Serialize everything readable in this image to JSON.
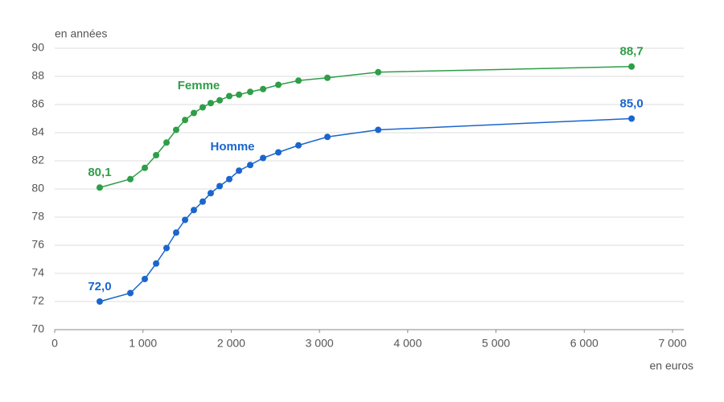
{
  "chart_data": {
    "type": "line",
    "y_label": "en années",
    "x_label": "en euros",
    "xlim": [
      0,
      7000
    ],
    "xticks": [
      0,
      {
        "value": 1000,
        "label": "1 000"
      },
      {
        "value": 2000,
        "label": "2 000"
      },
      {
        "value": 3000,
        "label": "3 000"
      },
      {
        "value": 4000,
        "label": "4 000"
      },
      {
        "value": 5000,
        "label": "5 000"
      },
      {
        "value": 6000,
        "label": "6 000"
      },
      {
        "value": 7000,
        "label": "7 000"
      }
    ],
    "ylim": [
      70,
      90
    ],
    "yticks": [
      70,
      72,
      74,
      76,
      78,
      80,
      82,
      84,
      86,
      88,
      90
    ],
    "grid": true,
    "x": [
      510,
      857,
      1021,
      1149,
      1267,
      1376,
      1477,
      1577,
      1677,
      1768,
      1869,
      1978,
      2088,
      2215,
      2361,
      2534,
      2762,
      3090,
      3665,
      6536
    ],
    "series": [
      {
        "name": "Femme",
        "color": "#2e9e48",
        "values": [
          80.1,
          80.7,
          81.5,
          82.4,
          83.3,
          84.2,
          84.9,
          85.4,
          85.8,
          86.1,
          86.3,
          86.6,
          86.7,
          86.9,
          87.1,
          87.4,
          87.7,
          87.9,
          88.3,
          88.7
        ],
        "value_labels": [
          "80,1",
          null,
          null,
          null,
          null,
          null,
          null,
          null,
          null,
          null,
          null,
          null,
          null,
          null,
          null,
          null,
          null,
          null,
          null,
          "88,7"
        ]
      },
      {
        "name": "Homme",
        "color": "#1a66cc",
        "values": [
          72.0,
          72.6,
          73.6,
          74.7,
          75.8,
          76.9,
          77.8,
          78.5,
          79.1,
          79.7,
          80.2,
          80.7,
          81.3,
          81.7,
          82.2,
          82.6,
          83.1,
          83.7,
          84.2,
          85.0
        ],
        "value_labels": [
          "72,0",
          null,
          null,
          null,
          null,
          null,
          null,
          null,
          null,
          null,
          null,
          null,
          null,
          null,
          null,
          null,
          null,
          null,
          null,
          "85,0"
        ]
      }
    ]
  }
}
